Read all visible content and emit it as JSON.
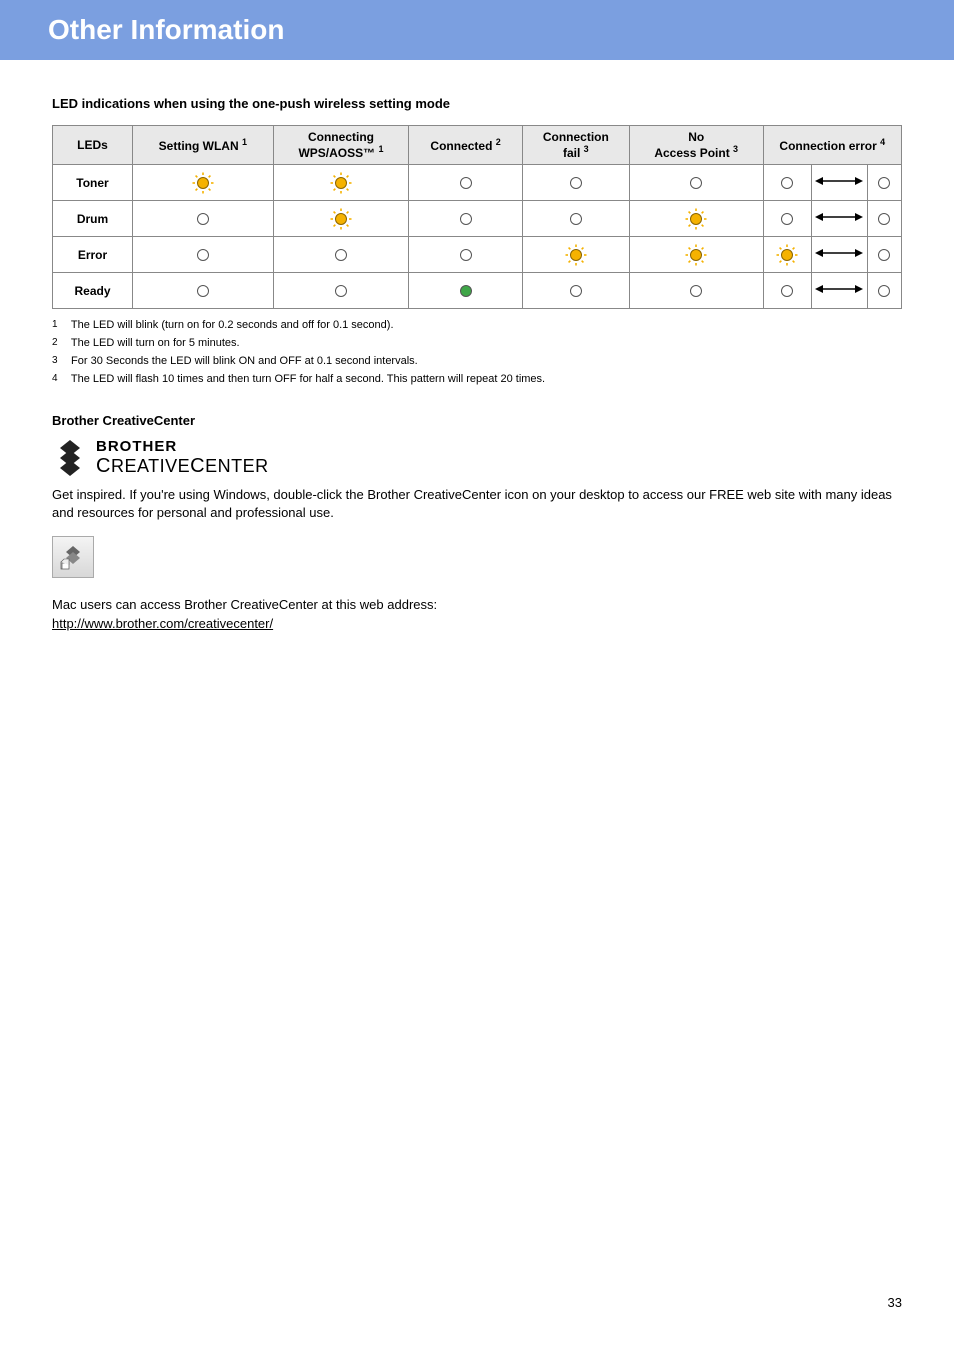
{
  "header": {
    "title": "Other Information"
  },
  "table": {
    "caption": "LED indications when using the one-push wireless setting mode",
    "columns": [
      {
        "label": "LEDs",
        "sup": ""
      },
      {
        "label": "Setting WLAN",
        "sup": "1"
      },
      {
        "label": "Connecting WPS/AOSS™",
        "sup": "1"
      },
      {
        "label": "Connected",
        "sup": "2"
      },
      {
        "label": "Connection fail",
        "sup": "3"
      },
      {
        "label": "No Access Point",
        "sup": "3"
      },
      {
        "label": "Connection error",
        "sup": "4",
        "colspan": 3
      }
    ],
    "rows": [
      {
        "label": "Toner",
        "cells": [
          "blink-yellow",
          "blink-yellow",
          "off",
          "off",
          "off",
          "off",
          "arrow",
          "off"
        ]
      },
      {
        "label": "Drum",
        "cells": [
          "off",
          "blink-yellow",
          "off",
          "off",
          "blink-yellow",
          "off",
          "arrow",
          "off"
        ]
      },
      {
        "label": "Error",
        "cells": [
          "off",
          "off",
          "off",
          "blink-yellow",
          "blink-yellow",
          "blink-yellow",
          "arrow",
          "off"
        ]
      },
      {
        "label": "Ready",
        "cells": [
          "off",
          "off",
          "on-green",
          "off",
          "off",
          "off",
          "arrow",
          "off"
        ]
      }
    ],
    "led_colors": {
      "blink-yellow": "#f5b200",
      "on-green": "#3fa648",
      "off": "#ffffff"
    }
  },
  "footnotes": [
    {
      "n": "1",
      "text": "The LED will blink (turn on for 0.2 seconds and off for 0.1 second)."
    },
    {
      "n": "2",
      "text": "The LED will turn on for 5 minutes."
    },
    {
      "n": "3",
      "text": "For 30 Seconds the LED will blink ON and OFF at 0.1 second intervals."
    },
    {
      "n": "4",
      "text": "The LED will flash 10 times and then turn OFF for half a second. This pattern will repeat 20 times."
    }
  ],
  "creativecenter": {
    "heading": "Brother CreativeCenter",
    "logo_line1": "BROTHER",
    "logo_line2_pre": "C",
    "logo_line2_mid": "REATIVE",
    "logo_line2_pre2": "C",
    "logo_line2_end": "ENTER",
    "para1": "Get inspired. If you're using Windows, double-click the Brother CreativeCenter icon on your desktop to access our FREE web site with many ideas and resources for personal and professional use.",
    "para2": "Mac users can access Brother CreativeCenter at this web address:",
    "url": "http://www.brother.com/creativecenter/"
  },
  "page_number": "33"
}
